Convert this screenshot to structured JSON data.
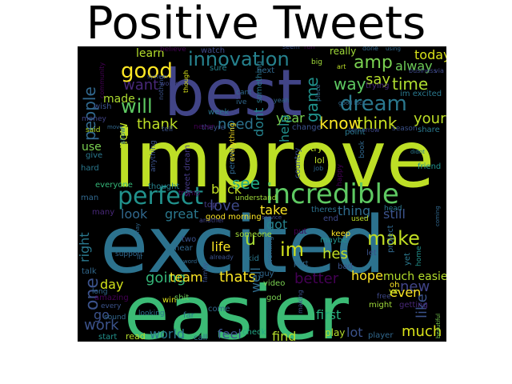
{
  "chart_data": {
    "type": "wordcloud",
    "title": "Positive Tweets",
    "words": [
      {
        "text": "improve",
        "color": "#bddf26"
      },
      {
        "text": "excited",
        "color": "#2c728e"
      },
      {
        "text": "easier",
        "color": "#3bbb75"
      },
      {
        "text": "best",
        "color": "#414487"
      },
      {
        "text": "incredible",
        "color": "#5ec962"
      },
      {
        "text": "perfect",
        "color": "#21918c"
      },
      {
        "text": "dream",
        "color": "#2a788e"
      },
      {
        "text": "innovation",
        "color": "#26828e"
      },
      {
        "text": "good",
        "color": "#fde725"
      },
      {
        "text": "amp",
        "color": "#7ad151"
      },
      {
        "text": "will",
        "color": "#5ec962"
      },
      {
        "text": "time",
        "color": "#addc30"
      },
      {
        "text": "make",
        "color": "#c2df23"
      },
      {
        "text": "one",
        "color": "#3b528b"
      },
      {
        "text": "see",
        "color": "#22a884"
      },
      {
        "text": "love",
        "color": "#3e4989"
      },
      {
        "text": "im",
        "color": "#d0e11c"
      },
      {
        "text": "people",
        "color": "#31688e"
      },
      {
        "text": "want",
        "color": "#482878"
      },
      {
        "text": "thank",
        "color": "#bddf26"
      },
      {
        "text": "need",
        "color": "#2c728e"
      },
      {
        "text": "know",
        "color": "#fde725"
      },
      {
        "text": "think",
        "color": "#c8e020"
      },
      {
        "text": "way",
        "color": "#5ec962"
      },
      {
        "text": "say",
        "color": "#b5de2b"
      },
      {
        "text": "game",
        "color": "#20928c"
      },
      {
        "text": "today",
        "color": "#d8e219"
      },
      {
        "text": "alway",
        "color": "#6ece58"
      },
      {
        "text": "youre",
        "color": "#bddf26"
      },
      {
        "text": "made",
        "color": "#addc30"
      },
      {
        "text": "learn",
        "color": "#b5de2b"
      },
      {
        "text": "go",
        "color": "#3b528b"
      },
      {
        "text": "work",
        "color": "#3b528b"
      },
      {
        "text": "day",
        "color": "#d2e21b"
      },
      {
        "text": "going",
        "color": "#35b779"
      },
      {
        "text": "team",
        "color": "#fde725"
      },
      {
        "text": "thats",
        "color": "#fde725"
      },
      {
        "text": "life",
        "color": "#fde725"
      },
      {
        "text": "hes",
        "color": "#c2df23"
      },
      {
        "text": "hope",
        "color": "#fde725"
      },
      {
        "text": "new",
        "color": "#414487"
      },
      {
        "text": "much easier",
        "color": "#b5de2b"
      },
      {
        "text": "even",
        "color": "#fde725"
      },
      {
        "text": "like",
        "color": "#3b528b"
      },
      {
        "text": "much",
        "color": "#dae319"
      },
      {
        "text": "lot",
        "color": "#3b528b"
      },
      {
        "text": "first",
        "color": "#29af7f"
      },
      {
        "text": "world",
        "color": "#2a788e"
      },
      {
        "text": "feel",
        "color": "#3b528b"
      },
      {
        "text": "find",
        "color": "#b5de2b"
      },
      {
        "text": "better",
        "color": "#440154"
      },
      {
        "text": "look",
        "color": "#31688e"
      },
      {
        "text": "great",
        "color": "#2a788e"
      },
      {
        "text": "take",
        "color": "#fde725"
      },
      {
        "text": "thing",
        "color": "#2f6c8e"
      },
      {
        "text": "still",
        "color": "#3b528b"
      },
      {
        "text": "got",
        "color": "#26828e"
      },
      {
        "text": "u",
        "color": "#a8db34"
      },
      {
        "text": "well",
        "color": "#2f6c8e"
      },
      {
        "text": "right",
        "color": "#2a788e"
      },
      {
        "text": "back",
        "color": "#c2df23"
      },
      {
        "text": "use",
        "color": "#7ad151"
      },
      {
        "text": "now",
        "color": "#bddf26"
      },
      {
        "text": "year",
        "color": "#7ad151"
      },
      {
        "text": "dont",
        "color": "#26828e"
      },
      {
        "text": "help",
        "color": "#21918c"
      },
      {
        "text": "good morning",
        "color": "#fde725"
      },
      {
        "text": "sweet dream",
        "color": "#443983"
      },
      {
        "text": "everyone",
        "color": "#35b779"
      },
      {
        "text": "amazing",
        "color": "#440154"
      },
      {
        "text": "something",
        "color": "#2a788e"
      },
      {
        "text": "country",
        "color": "#3b528b"
      },
      {
        "text": "person",
        "color": "#31688e"
      },
      {
        "text": "someone",
        "color": "#a0da39"
      },
      {
        "text": "really",
        "color": "#a0da39"
      },
      {
        "text": "week",
        "color": "#2c728e"
      },
      {
        "text": "next",
        "color": "#31688e"
      },
      {
        "text": "sure",
        "color": "#26828e"
      },
      {
        "text": "watch",
        "color": "#3e4989"
      },
      {
        "text": "believe",
        "color": "#440154"
      },
      {
        "text": "community",
        "color": "#440154"
      },
      {
        "text": "im excited",
        "color": "#2a788e"
      },
      {
        "text": "wish",
        "color": "#3b528b"
      },
      {
        "text": "money",
        "color": "#414487"
      },
      {
        "text": "said",
        "color": "#b5de2b"
      },
      {
        "text": "give",
        "color": "#2a788e"
      },
      {
        "text": "hard",
        "color": "#2a788e"
      },
      {
        "text": "man",
        "color": "#31688e"
      },
      {
        "text": "many",
        "color": "#482878"
      },
      {
        "text": "top",
        "color": "#443983"
      },
      {
        "text": "trump",
        "color": "#440154"
      },
      {
        "text": "understand",
        "color": "#a0da39"
      },
      {
        "text": "thought",
        "color": "#26828e"
      },
      {
        "text": "anything",
        "color": "#3b528b"
      },
      {
        "text": "support",
        "color": "#31688e"
      },
      {
        "text": "talk",
        "color": "#31688e"
      },
      {
        "text": "long",
        "color": "#31688e"
      },
      {
        "text": "every",
        "color": "#3b528b"
      },
      {
        "text": "sound",
        "color": "#31688e"
      },
      {
        "text": "looking",
        "color": "#2c728e"
      },
      {
        "text": "win",
        "color": "#dae319"
      },
      {
        "text": "shit",
        "color": "#6ece58"
      },
      {
        "text": "far",
        "color": "#2a788e"
      },
      {
        "text": "come",
        "color": "#31688e"
      },
      {
        "text": "read",
        "color": "#b5de2b"
      },
      {
        "text": "call",
        "color": "#31688e"
      },
      {
        "text": "start",
        "color": "#21918c"
      },
      {
        "text": "check",
        "color": "#22a884"
      },
      {
        "text": "play",
        "color": "#b5de2b"
      },
      {
        "text": "player",
        "color": "#31688e"
      },
      {
        "text": "getting",
        "color": "#482878"
      },
      {
        "text": "might",
        "color": "#a0da39"
      },
      {
        "text": "free",
        "color": "#3e4989"
      },
      {
        "text": "project",
        "color": "#31688e"
      },
      {
        "text": "keep",
        "color": "#fde725"
      },
      {
        "text": "maybe",
        "color": "#21918c"
      },
      {
        "text": "let",
        "color": "#3b528b"
      },
      {
        "text": "bad",
        "color": "#3b528b"
      },
      {
        "text": "used",
        "color": "#bddf26"
      },
      {
        "text": "theres",
        "color": "#2c728e"
      },
      {
        "text": "end",
        "color": "#3e4989"
      },
      {
        "text": "put",
        "color": "#440154"
      },
      {
        "text": "working",
        "color": "#31688e"
      },
      {
        "text": "guy",
        "color": "#31688e"
      },
      {
        "text": "video",
        "color": "#7ad151"
      },
      {
        "text": "god",
        "color": "#7ad151"
      },
      {
        "text": "kid",
        "color": "#2a788e"
      },
      {
        "text": "two",
        "color": "#3b528b"
      },
      {
        "text": "hear",
        "color": "#31688e"
      },
      {
        "text": "change",
        "color": "#3b528b"
      },
      {
        "text": "lol",
        "color": "#bddf26"
      },
      {
        "text": "try",
        "color": "#bddf26"
      },
      {
        "text": "tomorrow",
        "color": "#3e4989"
      },
      {
        "text": "point",
        "color": "#2a788e"
      },
      {
        "text": "season",
        "color": "#3b528b"
      },
      {
        "text": "share",
        "color": "#2a788e"
      },
      {
        "text": "friend",
        "color": "#21918c"
      },
      {
        "text": "home",
        "color": "#21918c"
      },
      {
        "text": "yet",
        "color": "#2a788e"
      },
      {
        "text": "oh",
        "color": "#fde725"
      },
      {
        "text": "ye",
        "color": "#c2df23"
      },
      {
        "text": "head",
        "color": "#2a788e"
      },
      {
        "text": "beautiful",
        "color": "#7ad151"
      },
      {
        "text": "coming",
        "color": "#31688e"
      },
      {
        "text": "business",
        "color": "#3e4989"
      },
      {
        "text": "via",
        "color": "#3e4989"
      },
      {
        "text": "trying",
        "color": "#482878"
      },
      {
        "text": "big",
        "color": "#a0da39"
      },
      {
        "text": "art",
        "color": "#bddf26"
      },
      {
        "text": "done",
        "color": "#31688e"
      },
      {
        "text": "using",
        "color": "#31688e"
      },
      {
        "text": "book",
        "color": "#31688e"
      },
      {
        "text": "happy",
        "color": "#440154"
      },
      {
        "text": "didnt",
        "color": "#2a788e"
      },
      {
        "text": "yeah",
        "color": "#31688e"
      },
      {
        "text": "ive",
        "color": "#31688e"
      },
      {
        "text": "cant",
        "color": "#31688e"
      },
      {
        "text": "women",
        "color": "#414487"
      },
      {
        "text": "system",
        "color": "#3b528b"
      },
      {
        "text": "nothing",
        "color": "#3b528b"
      },
      {
        "text": "though",
        "color": "#dae319"
      },
      {
        "text": "theyre",
        "color": "#3b528b"
      },
      {
        "text": "tell",
        "color": "#3b528b"
      },
      {
        "text": "never",
        "color": "#440154"
      },
      {
        "text": "everything",
        "color": "#fde725"
      },
      {
        "text": "another",
        "color": "#414487"
      },
      {
        "text": "service",
        "color": "#3e4989"
      },
      {
        "text": "seem",
        "color": "#3b528b"
      },
      {
        "text": "run",
        "color": "#440154"
      },
      {
        "text": "place",
        "color": "#31688e"
      },
      {
        "text": "good luck",
        "color": "#31688e"
      },
      {
        "text": "already",
        "color": "#3b528b"
      },
      {
        "text": "word",
        "color": "#31688e"
      },
      {
        "text": "family",
        "color": "#3b528b"
      },
      {
        "text": "making",
        "color": "#3b528b"
      },
      {
        "text": "ill",
        "color": "#31688e"
      },
      {
        "text": "show",
        "color": "#2c728e"
      },
      {
        "text": "move",
        "color": "#31688e"
      },
      {
        "text": "may",
        "color": "#31688e"
      },
      {
        "text": "part",
        "color": "#31688e"
      },
      {
        "text": "job",
        "color": "#31688e"
      }
    ]
  }
}
